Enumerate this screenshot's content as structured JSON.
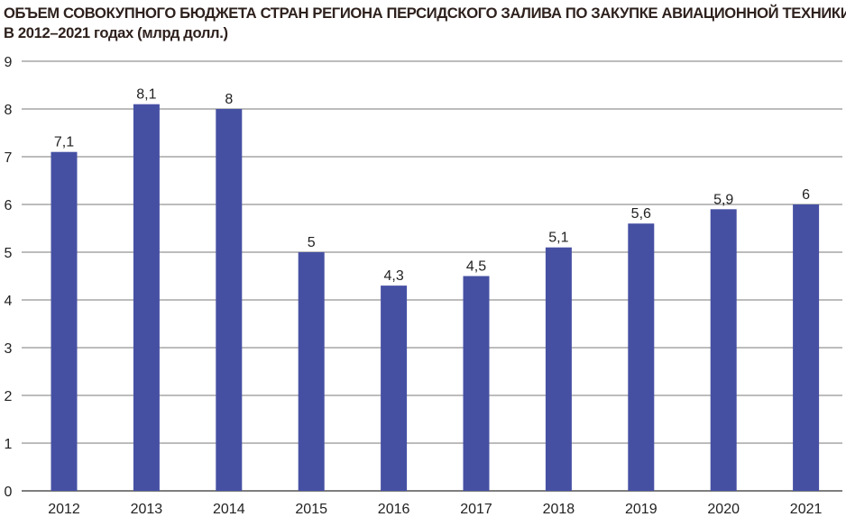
{
  "chart_data": {
    "type": "bar",
    "title": "ОБЪЕМ СОВОКУПНОГО БЮДЖЕТА СТРАН РЕГИОНА ПЕРСИДСКОГО ЗАЛИВА ПО ЗАКУПКЕ АВИАЦИОННОЙ ТЕХНИКИ",
    "subtitle": "В 2012–2021 годах (млрд долл.)",
    "categories": [
      "2012",
      "2013",
      "2014",
      "2015",
      "2016",
      "2017",
      "2018",
      "2019",
      "2020",
      "2021"
    ],
    "values": [
      7.1,
      8.1,
      8,
      5,
      4.3,
      4.5,
      5.1,
      5.6,
      5.9,
      6
    ],
    "value_labels": [
      "7,1",
      "8,1",
      "8",
      "5",
      "4,3",
      "4,5",
      "5,1",
      "5,6",
      "5,9",
      "6"
    ],
    "y_ticks": [
      "0",
      "1",
      "2",
      "3",
      "4",
      "5",
      "6",
      "7",
      "8",
      "9"
    ],
    "ylim": [
      0,
      9
    ],
    "xlabel": "",
    "ylabel": "",
    "grid": true,
    "bar_color": "#4650a3",
    "grid_color": "#7a7a7a"
  }
}
